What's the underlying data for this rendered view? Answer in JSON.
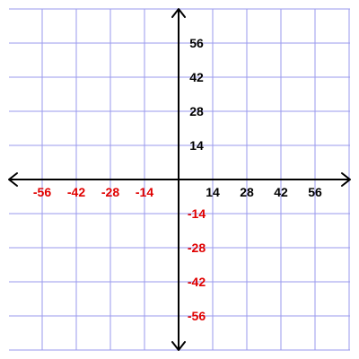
{
  "chart_data": {
    "type": "scatter",
    "title": "",
    "xlabel": "",
    "ylabel": "",
    "xlim": [
      -70,
      70
    ],
    "ylim": [
      -70,
      70
    ],
    "grid": true,
    "grid_step": 14,
    "series": [],
    "x_ticks": [
      {
        "value": -56,
        "label": "-56"
      },
      {
        "value": -42,
        "label": "-42"
      },
      {
        "value": -28,
        "label": "-28"
      },
      {
        "value": -14,
        "label": "-14"
      },
      {
        "value": 14,
        "label": "14"
      },
      {
        "value": 28,
        "label": "28"
      },
      {
        "value": 42,
        "label": "42"
      },
      {
        "value": 56,
        "label": "56"
      }
    ],
    "y_ticks": [
      {
        "value": 56,
        "label": "56"
      },
      {
        "value": 42,
        "label": "42"
      },
      {
        "value": 28,
        "label": "28"
      },
      {
        "value": 14,
        "label": "14"
      },
      {
        "value": -14,
        "label": "-14"
      },
      {
        "value": -28,
        "label": "-28"
      },
      {
        "value": -42,
        "label": "-42"
      },
      {
        "value": -56,
        "label": "-56"
      }
    ],
    "colors": {
      "grid": "#9a9aee",
      "axis": "#000000",
      "positive_label": "#000000",
      "negative_label": "#e00000"
    }
  }
}
